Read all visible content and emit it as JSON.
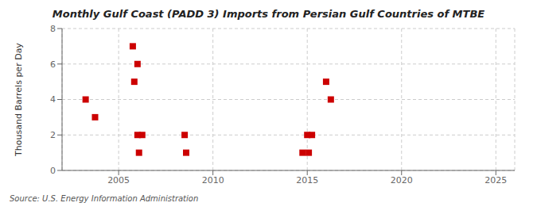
{
  "chart_data": {
    "type": "scatter",
    "title": "Monthly Gulf Coast (PADD 3) Imports from Persian Gulf Countries of MTBE",
    "ylabel": "Thousand Barrels per Day",
    "annotations": [
      "Source: U.S. Energy Information Administration"
    ],
    "x": [
      2003.25,
      2003.75,
      2005.75,
      2005.83,
      2006.0,
      2006.0,
      2006.08,
      2006.25,
      2008.5,
      2008.58,
      2014.75,
      2015.0,
      2015.08,
      2015.25,
      2016.0,
      2016.25
    ],
    "values": [
      4,
      3,
      7,
      5,
      6,
      2,
      1,
      2,
      2,
      1,
      1,
      2,
      1,
      2,
      5,
      4
    ],
    "color": "#cc0000",
    "marker": "square",
    "xlim": [
      2002,
      2026
    ],
    "ylim": [
      0,
      8
    ],
    "xticks": [
      2005,
      2010,
      2015,
      2020,
      2025
    ],
    "yticks": [
      0,
      2,
      4,
      6,
      8
    ],
    "grid": true
  }
}
